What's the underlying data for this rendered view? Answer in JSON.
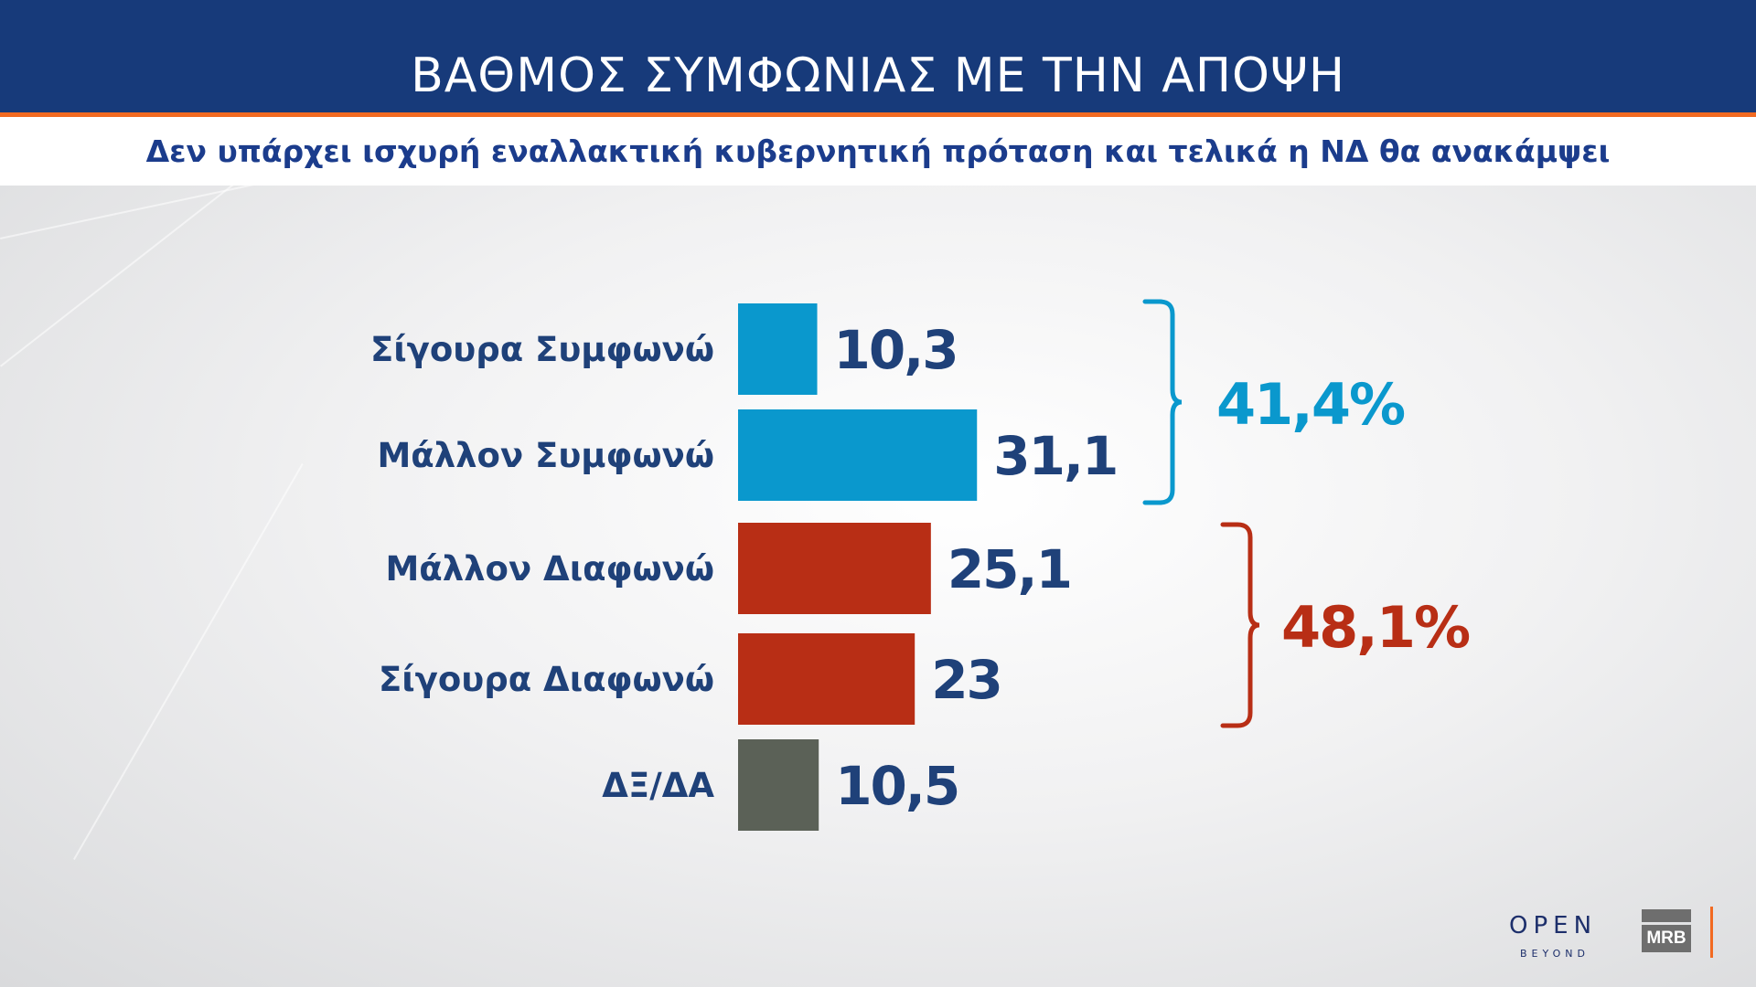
{
  "header": {
    "title": "ΒΑΘΜΟΣ ΣΥΜΦΩΝΙΑΣ ΜΕ ΤΗΝ ΑΠΟΨΗ",
    "subtitle": "Δεν υπάρχει ισχυρή εναλλακτική κυβερνητική πρόταση και τελικά η ΝΔ θα ανακάμψει"
  },
  "chart_data": {
    "type": "bar",
    "orientation": "horizontal",
    "categories": [
      "Σίγουρα Συμφωνώ",
      "Μάλλον Συμφωνώ",
      "Μάλλον Διαφωνώ",
      "Σίγουρα Διαφωνώ",
      "ΔΞ/ΔΑ"
    ],
    "values": [
      10.3,
      31.1,
      25.1,
      23,
      10.5
    ],
    "value_labels": [
      "10,3",
      "31,1",
      "25,1",
      "23",
      "10,5"
    ],
    "colors": [
      "#0a98cd",
      "#0a98cd",
      "#b82e15",
      "#b82e15",
      "#5b6157"
    ],
    "groups": [
      {
        "label": "41,4%",
        "members": [
          0,
          1
        ],
        "color": "#0a98cd"
      },
      {
        "label": "48,1%",
        "members": [
          2,
          3
        ],
        "color": "#b82e15"
      }
    ],
    "grid": false,
    "legend": "none",
    "label_color": "#1f4179"
  },
  "logos": {
    "open": "OPEN",
    "open_sub": "BEYOND",
    "mrb": "MRB"
  }
}
